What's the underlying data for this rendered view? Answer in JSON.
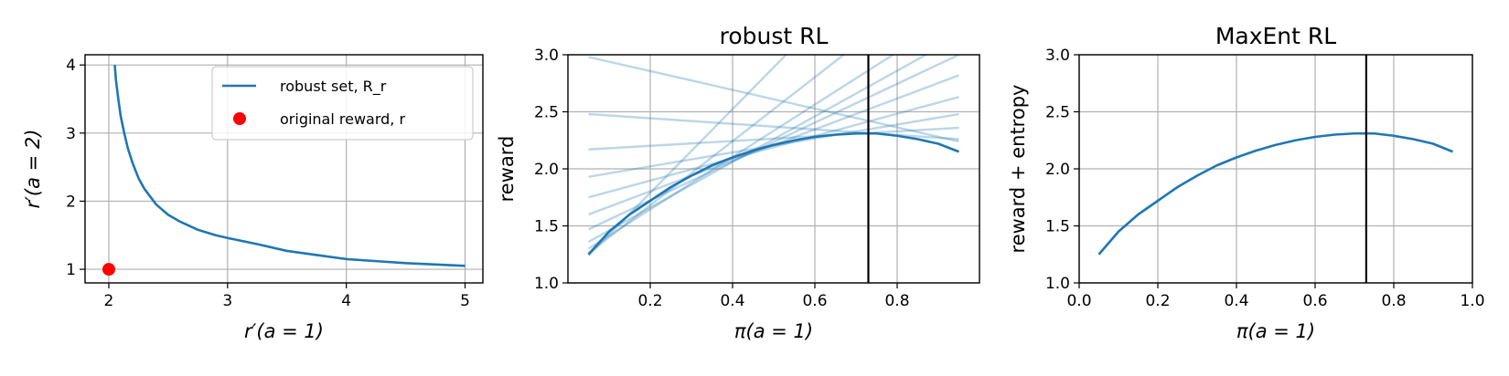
{
  "chart_data": [
    {
      "type": "line",
      "title": "",
      "xlabel": "r′(a = 1)",
      "ylabel": "r′(a = 2)",
      "xlim": [
        1.8,
        5.15
      ],
      "ylim": [
        0.8,
        4.15
      ],
      "xticks": [
        2,
        3,
        4,
        5
      ],
      "yticks": [
        1,
        2,
        3,
        4
      ],
      "grid": true,
      "legend_position": "top-right",
      "series": [
        {
          "name": "robust set, R_r",
          "kind": "line",
          "color": "#1f77b4",
          "x": [
            2.05,
            2.06,
            2.08,
            2.1,
            2.13,
            2.16,
            2.2,
            2.25,
            2.3,
            2.4,
            2.5,
            2.6,
            2.75,
            2.9,
            3.0,
            3.25,
            3.5,
            3.75,
            4.0,
            4.25,
            4.5,
            4.75,
            5.0
          ],
          "y": [
            4.0,
            3.78,
            3.5,
            3.25,
            3.0,
            2.78,
            2.56,
            2.34,
            2.18,
            1.95,
            1.8,
            1.7,
            1.58,
            1.5,
            1.46,
            1.37,
            1.27,
            1.21,
            1.15,
            1.12,
            1.09,
            1.07,
            1.05
          ]
        },
        {
          "name": "original reward, r",
          "kind": "scatter",
          "color": "#ff0000",
          "x": [
            2.0
          ],
          "y": [
            1.0
          ]
        }
      ]
    },
    {
      "type": "line",
      "title": "robust RL",
      "xlabel": "π(a = 1)",
      "ylabel": "reward",
      "xlim": [
        0.0,
        1.0
      ],
      "ylim": [
        1.0,
        3.0
      ],
      "xticks": [
        0.2,
        0.4,
        0.6,
        0.8
      ],
      "yticks": [
        1.0,
        1.5,
        2.0,
        2.5,
        3.0
      ],
      "grid": true,
      "vline": 0.73,
      "series": [
        {
          "kind": "line",
          "color": "#1f77b4",
          "x": [
            0.05,
            0.1,
            0.15,
            0.2,
            0.25,
            0.3,
            0.35,
            0.4,
            0.45,
            0.5,
            0.55,
            0.6,
            0.65,
            0.7,
            0.73,
            0.75,
            0.8,
            0.85,
            0.9,
            0.95
          ],
          "y": [
            1.25,
            1.45,
            1.6,
            1.72,
            1.84,
            1.94,
            2.03,
            2.1,
            2.16,
            2.21,
            2.25,
            2.28,
            2.3,
            2.31,
            2.31,
            2.31,
            2.29,
            2.26,
            2.22,
            2.15
          ]
        }
      ],
      "tangent_lines": [
        {
          "x": [
            0.05,
            0.95
          ],
          "y": [
            2.98,
            2.24
          ]
        },
        {
          "x": [
            0.05,
            0.95
          ],
          "y": [
            2.48,
            2.26
          ]
        },
        {
          "x": [
            0.05,
            0.95
          ],
          "y": [
            2.17,
            2.36
          ]
        },
        {
          "x": [
            0.05,
            0.95
          ],
          "y": [
            1.93,
            2.48
          ]
        },
        {
          "x": [
            0.05,
            0.95
          ],
          "y": [
            1.75,
            2.63
          ]
        },
        {
          "x": [
            0.05,
            0.95
          ],
          "y": [
            1.6,
            2.82
          ]
        },
        {
          "x": [
            0.05,
            0.95
          ],
          "y": [
            1.47,
            3.0
          ]
        },
        {
          "x": [
            0.05,
            0.87
          ],
          "y": [
            1.36,
            3.0
          ]
        },
        {
          "x": [
            0.05,
            0.79
          ],
          "y": [
            1.3,
            3.0
          ]
        },
        {
          "x": [
            0.05,
            0.67
          ],
          "y": [
            1.26,
            3.0
          ]
        },
        {
          "x": [
            0.05,
            0.53
          ],
          "y": [
            1.24,
            3.0
          ]
        }
      ]
    },
    {
      "type": "line",
      "title": "MaxEnt RL",
      "xlabel": "π(a = 1)",
      "ylabel": "reward + entropy",
      "xlim": [
        0.0,
        1.0
      ],
      "ylim": [
        1.0,
        3.0
      ],
      "xticks": [
        0.0,
        0.2,
        0.4,
        0.6,
        0.8,
        1.0
      ],
      "yticks": [
        1.0,
        1.5,
        2.0,
        2.5,
        3.0
      ],
      "grid": true,
      "vline": 0.73,
      "series": [
        {
          "kind": "line",
          "color": "#1f77b4",
          "x": [
            0.05,
            0.1,
            0.15,
            0.2,
            0.25,
            0.3,
            0.35,
            0.4,
            0.45,
            0.5,
            0.55,
            0.6,
            0.65,
            0.7,
            0.73,
            0.75,
            0.8,
            0.85,
            0.9,
            0.95
          ],
          "y": [
            1.25,
            1.45,
            1.6,
            1.72,
            1.84,
            1.94,
            2.03,
            2.1,
            2.16,
            2.21,
            2.25,
            2.28,
            2.3,
            2.31,
            2.31,
            2.31,
            2.29,
            2.26,
            2.22,
            2.15
          ]
        }
      ]
    }
  ]
}
